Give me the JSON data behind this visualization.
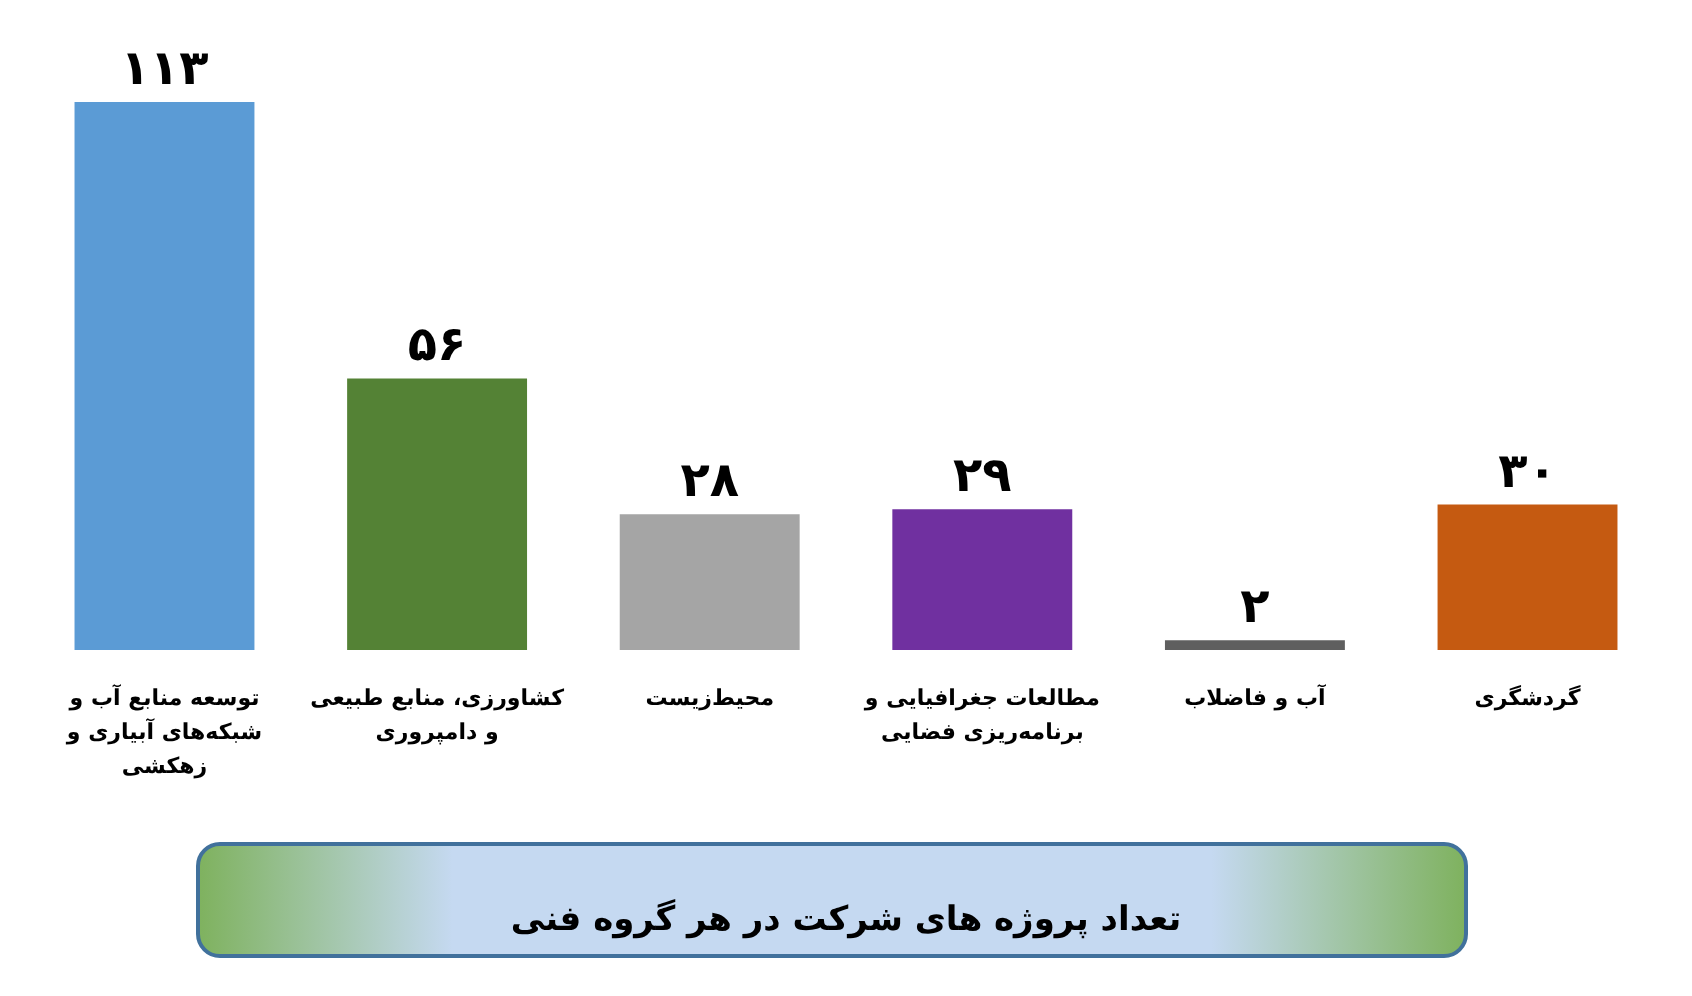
{
  "chart_data": {
    "type": "bar",
    "title": "تعداد پروژه های شرکت در هر گروه فنی",
    "categories": [
      "توسعه منابع آب و شبکه‌های آبیاری و زهکشی",
      "کشاورزی، منابع طبیعی و دامپروری",
      "محیط‌زیست",
      "مطالعات جغرافیایی و برنامه‌ریزی فضایی",
      "آب و فاضلاب",
      "گردشگری"
    ],
    "values": [
      113,
      56,
      28,
      29,
      2,
      30
    ],
    "value_labels": [
      "۱۱۳",
      "۵۶",
      "۲۸",
      "۲۹",
      "۲",
      "۳۰"
    ],
    "colors": [
      "#5b9bd5",
      "#548235",
      "#a5a5a5",
      "#7030a0",
      "#5f5f5f",
      "#c55a11"
    ]
  }
}
